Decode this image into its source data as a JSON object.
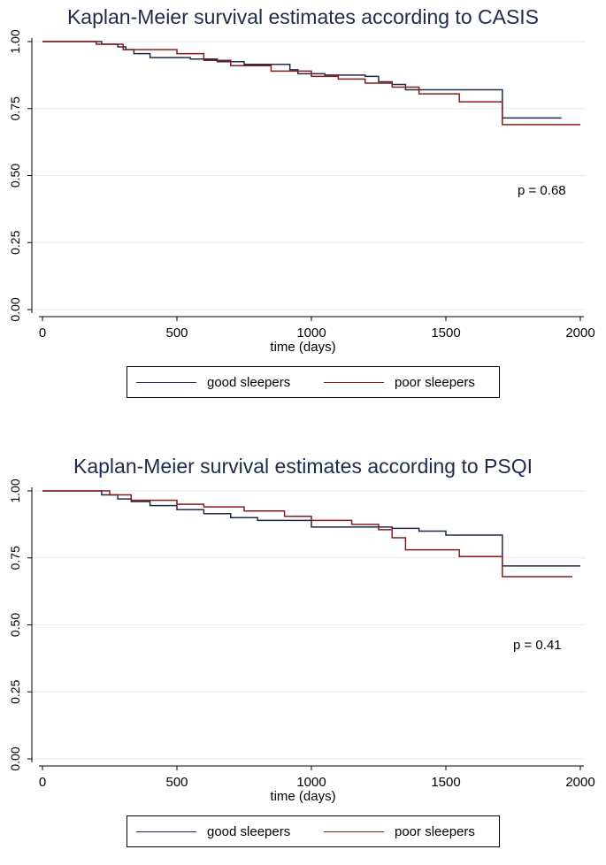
{
  "chart_data": [
    {
      "type": "line",
      "title": "Kaplan-Meier survival estimates according to CASIS",
      "xlabel": "time (days)",
      "ylabel": "",
      "xlim": [
        0,
        2000
      ],
      "ylim": [
        0,
        1
      ],
      "x_ticks": [
        "0",
        "500",
        "1000",
        "1500",
        "2000"
      ],
      "y_ticks": [
        "0.00",
        "0.25",
        "0.50",
        "0.75",
        "1.00"
      ],
      "grid": true,
      "legend": "bottom",
      "annotation": "p = 0.68",
      "series": [
        {
          "name": "good sleepers",
          "color": "#1f2a4d",
          "x": [
            0,
            220,
            280,
            310,
            340,
            400,
            550,
            650,
            750,
            900,
            920,
            950,
            1050,
            1200,
            1250,
            1300,
            1350,
            1700,
            1710,
            1930
          ],
          "y": [
            1.0,
            0.99,
            0.98,
            0.97,
            0.955,
            0.94,
            0.935,
            0.925,
            0.915,
            0.915,
            0.895,
            0.88,
            0.875,
            0.87,
            0.85,
            0.84,
            0.82,
            0.82,
            0.715,
            0.715
          ]
        },
        {
          "name": "poor sleepers",
          "color": "#8b1a1a",
          "x": [
            0,
            200,
            300,
            500,
            600,
            700,
            850,
            1000,
            1100,
            1200,
            1300,
            1400,
            1550,
            1700,
            1710,
            2000
          ],
          "y": [
            1.0,
            0.99,
            0.97,
            0.955,
            0.93,
            0.91,
            0.89,
            0.87,
            0.86,
            0.845,
            0.83,
            0.805,
            0.775,
            0.775,
            0.69,
            0.69
          ]
        }
      ]
    },
    {
      "type": "line",
      "title": "Kaplan-Meier survival estimates according to PSQI",
      "xlabel": "time (days)",
      "ylabel": "",
      "xlim": [
        0,
        2000
      ],
      "ylim": [
        0,
        1
      ],
      "x_ticks": [
        "0",
        "500",
        "1000",
        "1500",
        "2000"
      ],
      "y_ticks": [
        "0.00",
        "0.25",
        "0.50",
        "0.75",
        "1.00"
      ],
      "grid": true,
      "legend": "bottom",
      "annotation": "p = 0.41",
      "series": [
        {
          "name": "good sleepers",
          "color": "#1f2a4d",
          "x": [
            0,
            220,
            280,
            330,
            400,
            500,
            600,
            700,
            800,
            1000,
            1200,
            1300,
            1400,
            1500,
            1700,
            1710,
            2000
          ],
          "y": [
            1.0,
            0.985,
            0.97,
            0.96,
            0.945,
            0.93,
            0.915,
            0.9,
            0.89,
            0.865,
            0.865,
            0.86,
            0.85,
            0.835,
            0.835,
            0.72,
            0.72
          ]
        },
        {
          "name": "poor sleepers",
          "color": "#8b1a1a",
          "x": [
            0,
            250,
            330,
            500,
            600,
            750,
            900,
            1000,
            1150,
            1250,
            1300,
            1350,
            1550,
            1700,
            1710,
            1970
          ],
          "y": [
            1.0,
            0.985,
            0.965,
            0.95,
            0.94,
            0.925,
            0.905,
            0.89,
            0.875,
            0.855,
            0.825,
            0.78,
            0.755,
            0.755,
            0.68,
            0.68
          ]
        }
      ]
    }
  ]
}
